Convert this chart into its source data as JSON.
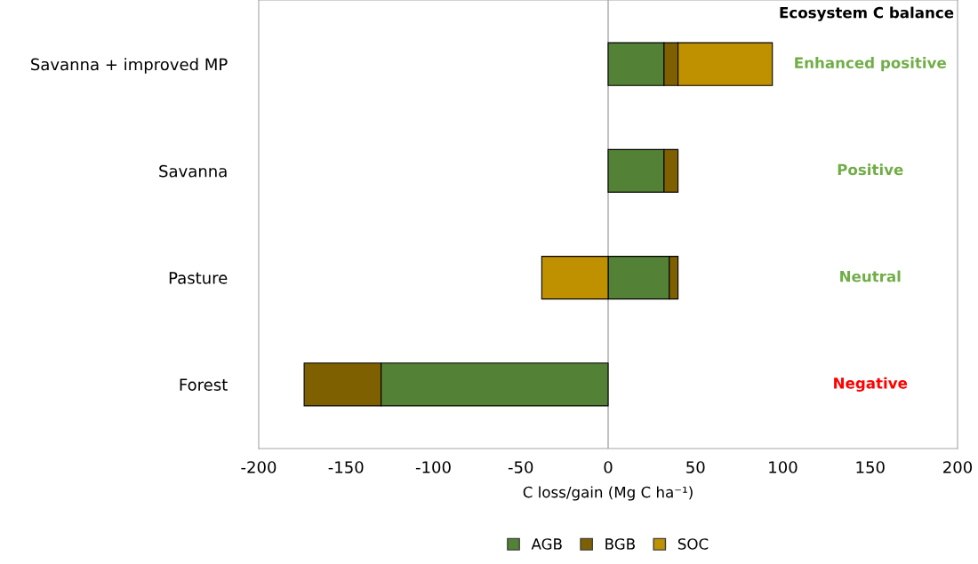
{
  "chart_data": {
    "type": "bar",
    "orientation": "horizontal",
    "stacked": true,
    "categories": [
      "Savanna + improved MP",
      "Savanna",
      "Pasture",
      "Forest"
    ],
    "series": [
      {
        "name": "AGB",
        "color": "#538135",
        "values": [
          32,
          32,
          35,
          -130
        ]
      },
      {
        "name": "BGB",
        "color": "#7f6000",
        "values": [
          8,
          8,
          5,
          -44
        ]
      },
      {
        "name": "SOC",
        "color": "#bf9000",
        "values": [
          54,
          null,
          -38,
          null
        ]
      }
    ],
    "xlabel": "C loss/gain (Mg C ha⁻¹)",
    "xlim": [
      -200,
      200
    ],
    "xticks": [
      -200,
      -150,
      -100,
      -50,
      0,
      50,
      100,
      150,
      200
    ],
    "ref_lines": [
      {
        "axis": "x",
        "value": 0,
        "color": "#a6a6a6"
      }
    ],
    "annotations": [
      "Ecosystem C balance",
      "Enhanced positive",
      "Positive",
      "Neutral",
      "Negative"
    ],
    "grid": false,
    "legend": "bottom"
  }
}
